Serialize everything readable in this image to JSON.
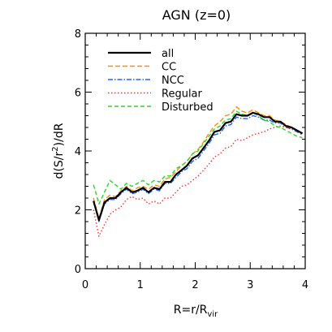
{
  "chart_data": {
    "type": "line",
    "title": "AGN (z=0)",
    "xlabel": {
      "main": "R=r/R",
      "sub": "vir"
    },
    "ylabel": {
      "pre": "d(S/r",
      "sup": "2",
      "post": ")/dR"
    },
    "xlim": [
      0,
      4
    ],
    "ylim": [
      0,
      8
    ],
    "x_ticks": [
      "0",
      "1",
      "2",
      "3",
      "4"
    ],
    "y_ticks": [
      "0",
      "2",
      "4",
      "6",
      "8"
    ],
    "grid": false,
    "legend_position": "top-left",
    "x": [
      0.15,
      0.25,
      0.35,
      0.45,
      0.55,
      0.65,
      0.75,
      0.85,
      0.95,
      1.05,
      1.15,
      1.25,
      1.35,
      1.45,
      1.55,
      1.65,
      1.75,
      1.85,
      1.95,
      2.05,
      2.15,
      2.25,
      2.35,
      2.45,
      2.55,
      2.65,
      2.75,
      2.85,
      2.95,
      3.05,
      3.15,
      3.25,
      3.35,
      3.45,
      3.55,
      3.65,
      3.75,
      3.85,
      3.95
    ],
    "series": [
      {
        "name": "all",
        "color": "#000000",
        "dash": "solid",
        "width": 2.2,
        "values": [
          2.3,
          1.65,
          2.25,
          2.4,
          2.4,
          2.6,
          2.75,
          2.6,
          2.65,
          2.75,
          2.6,
          2.75,
          2.7,
          2.95,
          2.95,
          3.2,
          3.35,
          3.5,
          3.75,
          3.85,
          4.1,
          4.35,
          4.65,
          4.7,
          4.95,
          5.0,
          5.25,
          5.2,
          5.2,
          5.3,
          5.25,
          5.15,
          5.15,
          5.0,
          5.0,
          4.85,
          4.8,
          4.7,
          4.6
        ]
      },
      {
        "name": "CC",
        "color": "#ff8c00",
        "dash": "6,3",
        "width": 1.4,
        "values": [
          2.4,
          1.7,
          2.35,
          2.5,
          2.45,
          2.65,
          2.8,
          2.65,
          2.75,
          2.8,
          2.7,
          2.85,
          2.8,
          3.05,
          3.1,
          3.3,
          3.5,
          3.65,
          3.9,
          4.05,
          4.3,
          4.6,
          4.85,
          5.0,
          5.2,
          5.25,
          5.5,
          5.35,
          5.3,
          5.4,
          5.3,
          5.2,
          5.2,
          5.05,
          5.0,
          4.9,
          4.8,
          4.7,
          4.6
        ]
      },
      {
        "name": "NCC",
        "color": "#1e64ff",
        "dash": "6,2,1.5,2",
        "width": 1.4,
        "values": [
          2.3,
          1.6,
          2.2,
          2.35,
          2.35,
          2.55,
          2.7,
          2.55,
          2.6,
          2.7,
          2.55,
          2.7,
          2.65,
          2.9,
          2.9,
          3.1,
          3.3,
          3.4,
          3.65,
          3.75,
          4.0,
          4.25,
          4.55,
          4.6,
          4.85,
          4.9,
          5.15,
          5.1,
          5.1,
          5.2,
          5.15,
          5.05,
          5.05,
          4.95,
          4.95,
          4.8,
          4.75,
          4.65,
          4.55
        ]
      },
      {
        "name": "Regular",
        "color": "#ff3030",
        "dash": "1.5,2.5",
        "width": 1.4,
        "values": [
          2.0,
          1.1,
          1.5,
          1.85,
          2.0,
          2.1,
          2.35,
          2.45,
          2.35,
          2.4,
          2.2,
          2.3,
          2.2,
          2.4,
          2.4,
          2.6,
          2.8,
          2.85,
          3.0,
          3.15,
          3.35,
          3.55,
          3.8,
          3.9,
          4.1,
          4.15,
          4.4,
          4.35,
          4.45,
          4.55,
          4.6,
          4.65,
          4.75,
          4.8,
          4.85,
          4.8,
          4.75,
          4.65,
          4.55
        ]
      },
      {
        "name": "Disturbed",
        "color": "#22dd22",
        "dash": "5,3",
        "width": 1.4,
        "values": [
          2.85,
          2.2,
          2.6,
          3.0,
          2.85,
          2.7,
          2.9,
          2.8,
          2.9,
          3.0,
          2.85,
          3.0,
          2.95,
          3.15,
          3.15,
          3.4,
          3.5,
          3.65,
          3.9,
          4.0,
          4.25,
          4.5,
          4.75,
          4.85,
          5.05,
          5.1,
          5.35,
          5.25,
          5.2,
          5.3,
          5.2,
          5.05,
          5.0,
          4.85,
          4.8,
          4.7,
          4.6,
          4.5,
          4.45
        ]
      }
    ]
  }
}
